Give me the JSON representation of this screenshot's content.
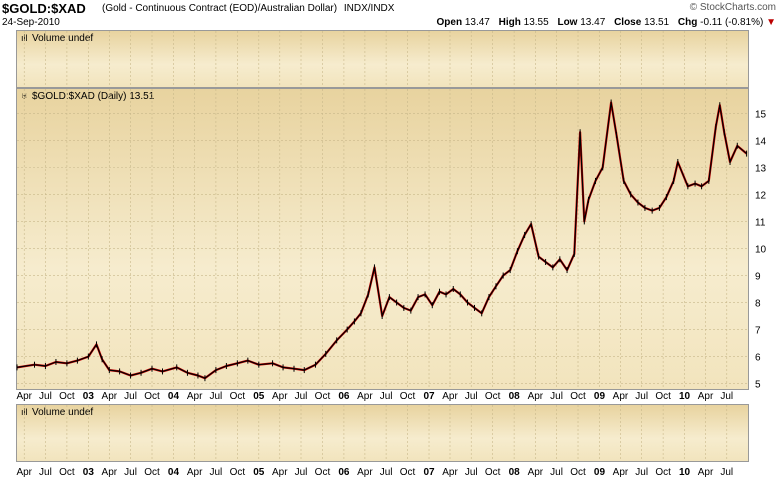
{
  "header": {
    "symbol": "$GOLD:$XAD",
    "description": "(Gold - Continuous Contract (EOD)/Australian Dollar)",
    "exchange": "INDX/INDX",
    "brand": "© StockCharts.com",
    "date": "24-Sep-2010",
    "open_label": "Open",
    "open": "13.47",
    "high_label": "High",
    "high": "13.55",
    "low_label": "Low",
    "low": "13.47",
    "close_label": "Close",
    "close": "13.51",
    "chg_label": "Chg",
    "chg": "-0.11 (-0.81%)",
    "chg_arrow": "▼"
  },
  "panels": {
    "volume_top_label": "Volume undef",
    "price_label": "$GOLD:$XAD (Daily) 13.51",
    "volume_bottom_label": "Volume undef"
  },
  "colors": {
    "panel_bg_top": "#e8d39f",
    "panel_bg_bottom": "#f2e4bd",
    "up_bar": "#000000",
    "down_bar": "#cc0000",
    "grid": "#c8b88a",
    "change_down": "#bb0000"
  },
  "chart_data": {
    "type": "line",
    "title": "$GOLD:$XAD (Daily) 13.51",
    "xlabel": "",
    "ylabel": "",
    "ylim": [
      4.8,
      15.9
    ],
    "y_ticks": [
      5,
      6,
      7,
      8,
      9,
      10,
      11,
      12,
      13,
      14,
      15
    ],
    "x_tick_labels": [
      "Apr",
      "Jul",
      "Oct",
      "03",
      "Apr",
      "Jul",
      "Oct",
      "04",
      "Apr",
      "Jul",
      "Oct",
      "05",
      "Apr",
      "Jul",
      "Oct",
      "06",
      "Apr",
      "Jul",
      "Oct",
      "07",
      "Apr",
      "Jul",
      "Oct",
      "08",
      "Apr",
      "Jul",
      "Oct",
      "09",
      "Apr",
      "Jul",
      "Oct",
      "10",
      "Apr",
      "Jul"
    ],
    "x_range": [
      "2002-03-01",
      "2010-09-30"
    ],
    "grid": true,
    "series": [
      {
        "values": [
          [
            "2002-03-01",
            5.6
          ],
          [
            "2002-05-15",
            5.7
          ],
          [
            "2002-07-01",
            5.65
          ],
          [
            "2002-08-15",
            5.8
          ],
          [
            "2002-10-01",
            5.75
          ],
          [
            "2002-11-15",
            5.85
          ],
          [
            "2003-01-01",
            6.0
          ],
          [
            "2003-02-05",
            6.45
          ],
          [
            "2003-03-01",
            5.9
          ],
          [
            "2003-04-01",
            5.5
          ],
          [
            "2003-05-15",
            5.45
          ],
          [
            "2003-07-01",
            5.3
          ],
          [
            "2003-08-15",
            5.4
          ],
          [
            "2003-10-01",
            5.55
          ],
          [
            "2003-11-15",
            5.45
          ],
          [
            "2004-01-15",
            5.6
          ],
          [
            "2004-03-01",
            5.4
          ],
          [
            "2004-04-15",
            5.3
          ],
          [
            "2004-05-15",
            5.2
          ],
          [
            "2004-07-01",
            5.5
          ],
          [
            "2004-08-15",
            5.65
          ],
          [
            "2004-10-01",
            5.75
          ],
          [
            "2004-11-15",
            5.85
          ],
          [
            "2005-01-01",
            5.7
          ],
          [
            "2005-03-01",
            5.75
          ],
          [
            "2005-04-15",
            5.6
          ],
          [
            "2005-06-01",
            5.55
          ],
          [
            "2005-07-15",
            5.5
          ],
          [
            "2005-09-01",
            5.7
          ],
          [
            "2005-10-15",
            6.1
          ],
          [
            "2005-12-01",
            6.6
          ],
          [
            "2006-01-15",
            7.0
          ],
          [
            "2006-02-15",
            7.3
          ],
          [
            "2006-03-15",
            7.6
          ],
          [
            "2006-04-15",
            8.3
          ],
          [
            "2006-05-12",
            9.3
          ],
          [
            "2006-06-14",
            7.5
          ],
          [
            "2006-07-15",
            8.2
          ],
          [
            "2006-08-15",
            8.0
          ],
          [
            "2006-09-15",
            7.8
          ],
          [
            "2006-10-15",
            7.7
          ],
          [
            "2006-11-15",
            8.2
          ],
          [
            "2006-12-15",
            8.3
          ],
          [
            "2007-01-15",
            7.9
          ],
          [
            "2007-02-15",
            8.4
          ],
          [
            "2007-03-15",
            8.3
          ],
          [
            "2007-04-15",
            8.5
          ],
          [
            "2007-05-15",
            8.3
          ],
          [
            "2007-06-15",
            8.0
          ],
          [
            "2007-07-15",
            7.8
          ],
          [
            "2007-08-15",
            7.6
          ],
          [
            "2007-09-15",
            8.2
          ],
          [
            "2007-10-15",
            8.6
          ],
          [
            "2007-11-15",
            9.0
          ],
          [
            "2007-12-15",
            9.2
          ],
          [
            "2008-01-15",
            9.9
          ],
          [
            "2008-02-15",
            10.5
          ],
          [
            "2008-03-14",
            10.9
          ],
          [
            "2008-04-15",
            9.7
          ],
          [
            "2008-05-15",
            9.5
          ],
          [
            "2008-06-15",
            9.3
          ],
          [
            "2008-07-15",
            9.6
          ],
          [
            "2008-08-15",
            9.2
          ],
          [
            "2008-09-15",
            9.8
          ],
          [
            "2008-10-10",
            14.3
          ],
          [
            "2008-10-28",
            11.0
          ],
          [
            "2008-11-15",
            11.8
          ],
          [
            "2008-12-15",
            12.5
          ],
          [
            "2009-01-15",
            13.0
          ],
          [
            "2009-02-20",
            15.4
          ],
          [
            "2009-03-15",
            14.2
          ],
          [
            "2009-04-15",
            12.5
          ],
          [
            "2009-05-15",
            12.0
          ],
          [
            "2009-06-15",
            11.7
          ],
          [
            "2009-07-15",
            11.5
          ],
          [
            "2009-08-15",
            11.4
          ],
          [
            "2009-09-15",
            11.5
          ],
          [
            "2009-10-15",
            11.9
          ],
          [
            "2009-11-15",
            12.5
          ],
          [
            "2009-12-03",
            13.2
          ],
          [
            "2010-01-15",
            12.3
          ],
          [
            "2010-02-15",
            12.4
          ],
          [
            "2010-03-15",
            12.3
          ],
          [
            "2010-04-15",
            12.5
          ],
          [
            "2010-05-15",
            14.5
          ],
          [
            "2010-06-01",
            15.3
          ],
          [
            "2010-06-20",
            14.3
          ],
          [
            "2010-07-15",
            13.2
          ],
          [
            "2010-08-15",
            13.8
          ],
          [
            "2010-09-24",
            13.51
          ]
        ]
      }
    ]
  }
}
